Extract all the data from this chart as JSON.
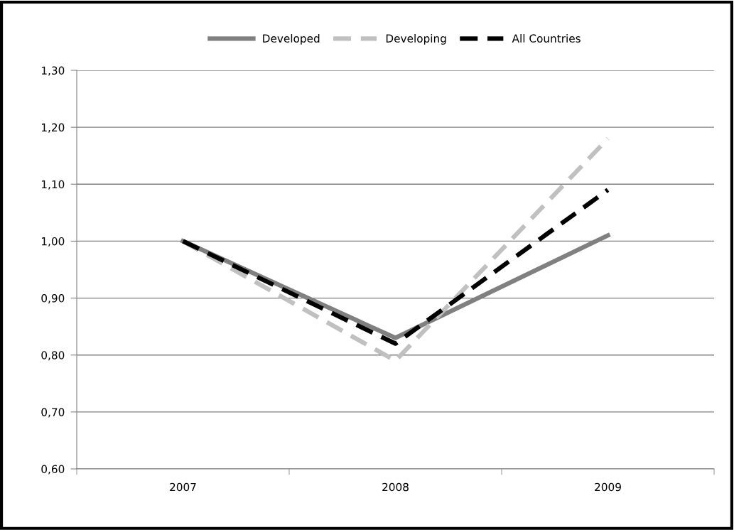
{
  "chart_data": {
    "type": "line",
    "categories": [
      "2007",
      "2008",
      "2009"
    ],
    "series": [
      {
        "name": "Developed",
        "color": "#808080",
        "values": [
          1.0,
          0.83,
          1.01
        ],
        "line_style": "solid"
      },
      {
        "name": "Developing",
        "color": "#c0c0c0",
        "values": [
          1.0,
          0.79,
          1.18
        ],
        "line_style": "dashed"
      },
      {
        "name": "All Countries",
        "color": "#000000",
        "values": [
          1.0,
          0.82,
          1.09
        ],
        "line_style": "dashed"
      }
    ],
    "ylim": [
      0.6,
      1.3
    ],
    "yticks": [
      {
        "value": 0.6,
        "label": "0,60"
      },
      {
        "value": 0.7,
        "label": "0,70"
      },
      {
        "value": 0.8,
        "label": "0,80"
      },
      {
        "value": 0.9,
        "label": "0,90"
      },
      {
        "value": 1.0,
        "label": "1,00"
      },
      {
        "value": 1.1,
        "label": "1,10"
      },
      {
        "value": 1.2,
        "label": "1,20"
      },
      {
        "value": 1.3,
        "label": "1,30"
      }
    ],
    "grid": "y",
    "legend": "top",
    "marker": "none"
  }
}
